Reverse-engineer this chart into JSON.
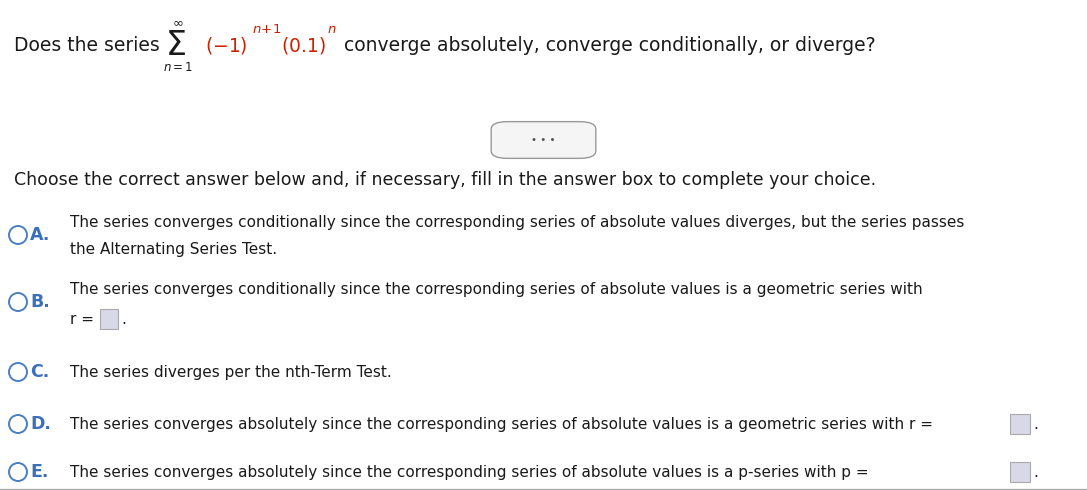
{
  "background_color": "#ffffff",
  "fig_width": 10.87,
  "fig_height": 4.9,
  "dpi": 100,
  "font_size_title": 13.5,
  "font_size_body": 12.5,
  "font_size_small": 11.0,
  "circle_color": "#4a7fc1",
  "label_color": "#3a6fba",
  "text_color": "#1a1a1a",
  "red_color": "#cc2200",
  "divider_color": "#aaaaaa",
  "box_edge_color": "#aaaaaa",
  "box_face_color": "#d8d8e8",
  "btn_edge_color": "#999999",
  "btn_face_color": "#f5f5f5",
  "btn_text_color": "#555555",
  "prompt": "Choose the correct answer below and, if necessary, fill in the answer box to complete your choice.",
  "choice_A_line1": "The series converges conditionally since the corresponding series of absolute values diverges, but the series passes",
  "choice_A_line2": "the Alternating Series Test.",
  "choice_B_line1": "The series converges conditionally since the corresponding series of absolute values is a geometric series with",
  "choice_B_r_label": "r = ",
  "choice_C_line1": "The series diverges per the nth-Term Test.",
  "choice_D_line1": "The series converges absolutely since the corresponding series of absolute values is a geometric series with r =",
  "choice_E_line1": "The series converges absolutely since the corresponding series of absolute values is a p-series with p ="
}
